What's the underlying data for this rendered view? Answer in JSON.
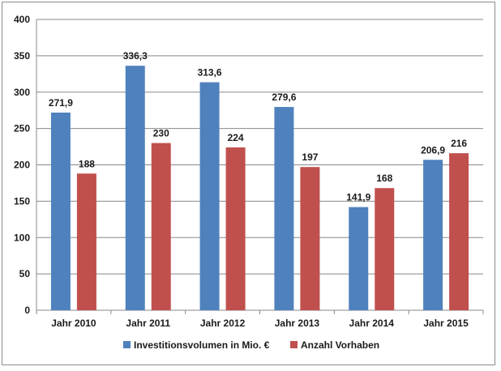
{
  "chart_data": {
    "type": "bar",
    "title": "",
    "xlabel": "",
    "ylabel": "",
    "ylim": [
      0,
      400
    ],
    "yticks": [
      0,
      50,
      100,
      150,
      200,
      250,
      300,
      350,
      400
    ],
    "grid": true,
    "legend_position": "bottom",
    "categories": [
      "Jahr 2010",
      "Jahr 2011",
      "Jahr 2012",
      "Jahr 2013",
      "Jahr 2014",
      "Jahr 2015"
    ],
    "series": [
      {
        "name": "Investitionsvolumen in Mio. €",
        "color": "#4f81bd",
        "values": [
          271.9,
          336.3,
          313.6,
          279.6,
          141.9,
          206.9
        ],
        "labels": [
          "271,9",
          "336,3",
          "313,6",
          "279,6",
          "141,9",
          "206,9"
        ]
      },
      {
        "name": "Anzahl Vorhaben",
        "color": "#c0504d",
        "values": [
          188,
          230,
          224,
          197,
          168,
          216
        ],
        "labels": [
          "188",
          "230",
          "224",
          "197",
          "168",
          "216"
        ]
      }
    ]
  }
}
